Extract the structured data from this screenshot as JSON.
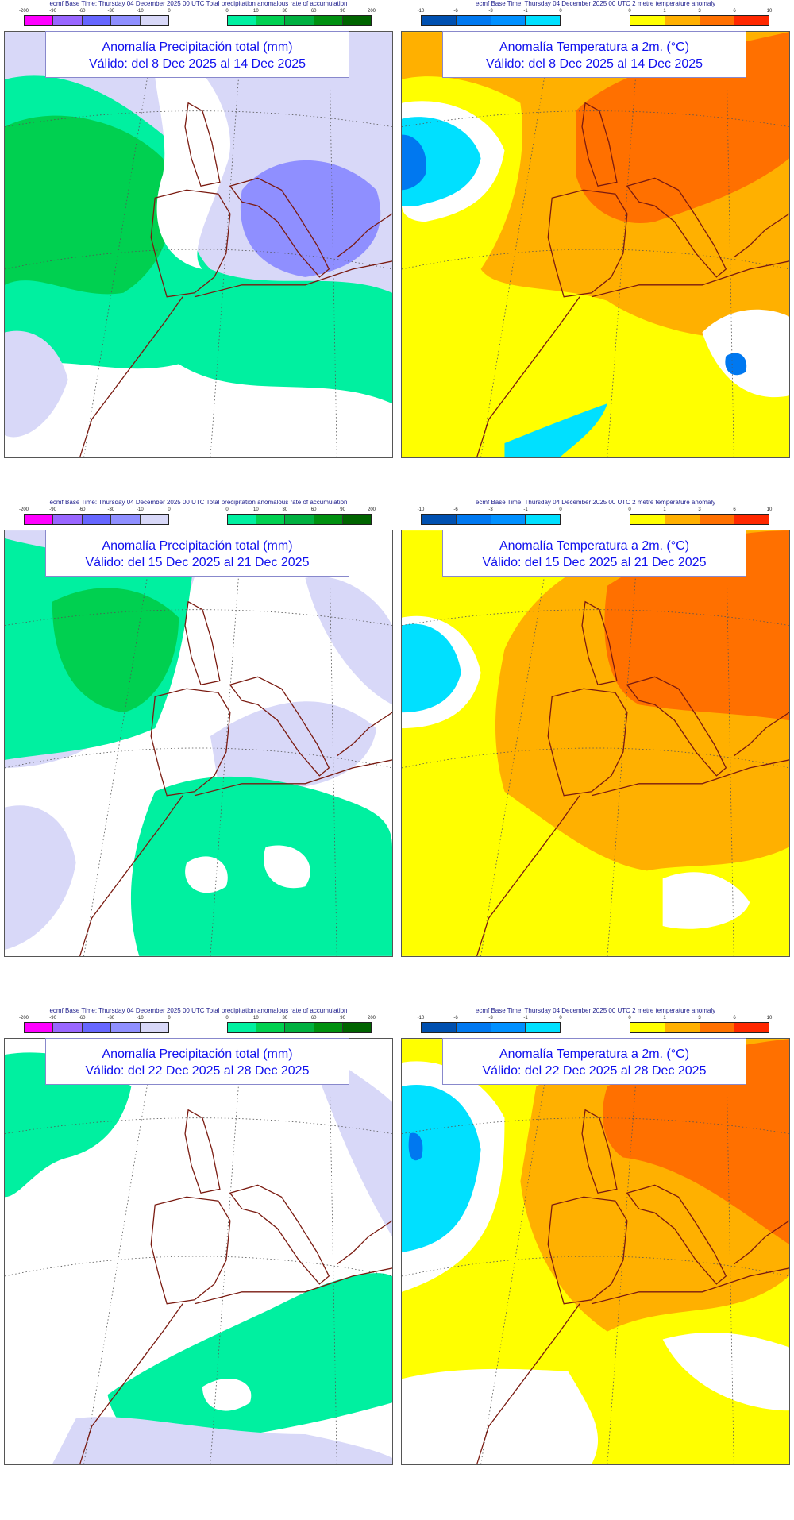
{
  "precip_legend": {
    "basetime": "ecmf  Base Time: Thursday 04 December 2025 00 UTC Total precipitation anomalous rate of accumulation",
    "neg_ticks": [
      "-200",
      "-90",
      "-60",
      "-30",
      "-10",
      "0"
    ],
    "neg_colors": [
      "#ff00ff",
      "#9966ff",
      "#6666ff",
      "#8f8fff",
      "#d8d8f8"
    ],
    "pos_ticks": [
      "0",
      "10",
      "30",
      "60",
      "90",
      "200"
    ],
    "pos_colors": [
      "#00f0a0",
      "#00d050",
      "#00b040",
      "#009010",
      "#006400"
    ]
  },
  "temp_legend": {
    "basetime": "ecmf  Base Time: Thursday 04 December 2025 00 UTC 2 metre temperature anomaly",
    "neg_ticks": [
      "-10",
      "-6",
      "-3",
      "-1",
      "0"
    ],
    "neg_colors": [
      "#0050b0",
      "#0078f0",
      "#0090ff",
      "#00e0ff"
    ],
    "pos_ticks": [
      "0",
      "1",
      "3",
      "6",
      "10"
    ],
    "pos_colors": [
      "#ffff00",
      "#ffb000",
      "#ff7000",
      "#ff2800"
    ]
  },
  "panels": [
    {
      "kind": "precip",
      "title": "Anomalía Precipitación total (mm)",
      "valid": "Válido: del 8 Dec 2025 al 14 Dec 2025"
    },
    {
      "kind": "temp",
      "title": "Anomalía Temperatura a 2m. (°C)",
      "valid": "Válido: del 8 Dec 2025 al 14 Dec 2025"
    },
    {
      "kind": "precip",
      "title": "Anomalía Precipitación total (mm)",
      "valid": "Válido: del 15 Dec 2025 al 21 Dec 2025"
    },
    {
      "kind": "temp",
      "title": "Anomalía Temperatura a 2m. (°C)",
      "valid": "Válido: del 15 Dec 2025 al 21 Dec 2025"
    },
    {
      "kind": "precip",
      "title": "Anomalía Precipitación total (mm)",
      "valid": "Válido: del 22 Dec 2025 al 28 Dec 2025"
    },
    {
      "kind": "temp",
      "title": "Anomalía Temperatura a 2m. (°C)",
      "valid": "Válido: del 22 Dec 2025 al 28 Dec 2025"
    }
  ]
}
